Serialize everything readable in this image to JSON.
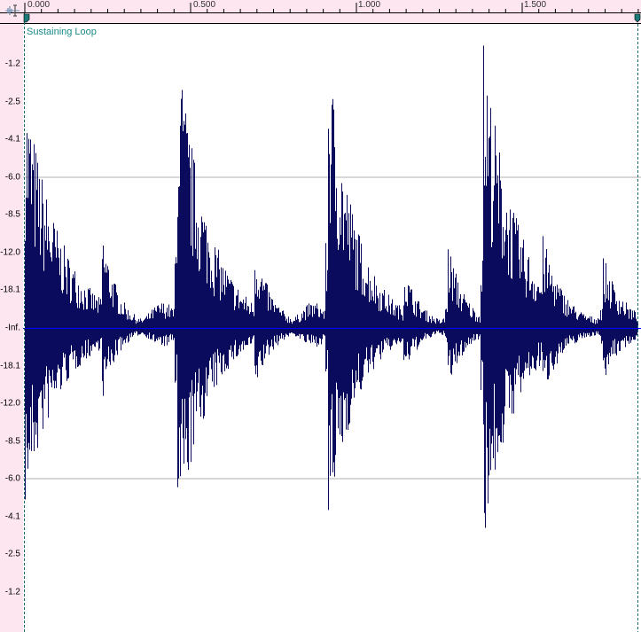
{
  "ruler": {
    "labels": [
      "0.000",
      "0.500",
      "1.000",
      "1.500"
    ]
  },
  "region": {
    "label": "Sustaining Loop"
  },
  "axis": {
    "labels": [
      "-1.2",
      "-2.5",
      "-4.1",
      "-6.0",
      "-8.5",
      "-12.0",
      "-18.1",
      "-Inf.",
      "-18.1",
      "-12.0",
      "-8.5",
      "-6.0",
      "-4.1",
      "-2.5",
      "-1.2"
    ]
  },
  "colors": {
    "waveform": "#0b0b5e",
    "center_line": "#0000ff",
    "grid": "#b0b0b0",
    "ruler_bg": "#fde6f0",
    "region_label": "#1a8a8a"
  },
  "icons": {
    "corner": "waveform-select-icon",
    "loop_start": "loop-start-marker-icon",
    "loop_end": "loop-end-marker-icon"
  }
}
